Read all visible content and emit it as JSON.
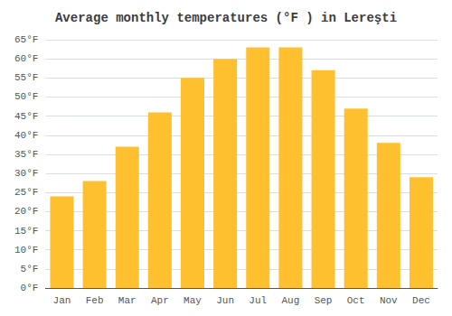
{
  "chart_data": {
    "type": "bar",
    "title": "Average monthly temperatures (°F ) in Lereşti",
    "categories": [
      "Jan",
      "Feb",
      "Mar",
      "Apr",
      "May",
      "Jun",
      "Jul",
      "Aug",
      "Sep",
      "Oct",
      "Nov",
      "Dec"
    ],
    "values": [
      24,
      28,
      37,
      46,
      55,
      60,
      63,
      63,
      57,
      47,
      38,
      29
    ],
    "color": "#FFC030",
    "ylim": [
      0,
      65
    ],
    "yticks": [
      {
        "value": 0,
        "label": "0°F"
      },
      {
        "value": 5,
        "label": "5°F"
      },
      {
        "value": 10,
        "label": "10°F"
      },
      {
        "value": 15,
        "label": "15°F"
      },
      {
        "value": 20,
        "label": "20°F"
      },
      {
        "value": 25,
        "label": "25°F"
      },
      {
        "value": 30,
        "label": "30°F"
      },
      {
        "value": 35,
        "label": "35°F"
      },
      {
        "value": 40,
        "label": "40°F"
      },
      {
        "value": 45,
        "label": "45°F"
      },
      {
        "value": 50,
        "label": "50°F"
      },
      {
        "value": 55,
        "label": "55°F"
      },
      {
        "value": 60,
        "label": "60°F"
      },
      {
        "value": 65,
        "label": "65°F"
      }
    ],
    "grid": true
  }
}
